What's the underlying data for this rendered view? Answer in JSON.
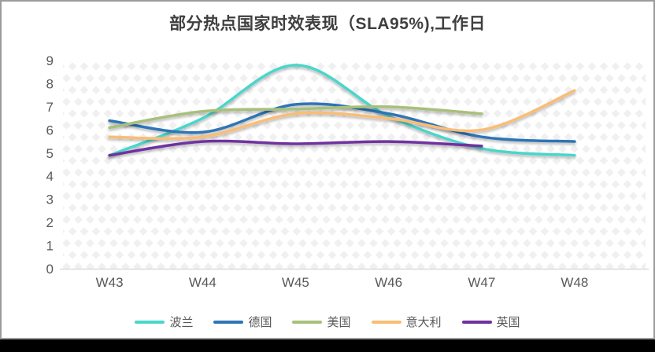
{
  "chart_data": {
    "type": "line",
    "title": "部分热点国家时效表现（SLA95%),工作日",
    "categories": [
      "W43",
      "W44",
      "W45",
      "W46",
      "W47",
      "W48"
    ],
    "series": [
      {
        "key": "poland",
        "name": "波兰",
        "color": "#4AD6CB",
        "values": [
          4.9,
          6.5,
          8.8,
          6.6,
          5.2,
          4.9
        ]
      },
      {
        "key": "germany",
        "name": "德国",
        "color": "#2E75B6",
        "values": [
          6.4,
          5.9,
          7.1,
          6.7,
          5.7,
          5.5
        ]
      },
      {
        "key": "usa",
        "name": "美国",
        "color": "#A8C07A",
        "values": [
          6.1,
          6.8,
          6.9,
          7.0,
          6.7,
          null
        ]
      },
      {
        "key": "italy",
        "name": "意大利",
        "color": "#FABD74",
        "values": [
          5.7,
          5.7,
          6.7,
          6.5,
          6.0,
          7.7
        ]
      },
      {
        "key": "uk",
        "name": "英国",
        "color": "#7030A0",
        "values": [
          4.9,
          5.5,
          5.4,
          5.5,
          5.3,
          null
        ]
      }
    ],
    "ylim": [
      0,
      9
    ],
    "y_ticks": [
      0,
      1,
      2,
      3,
      4,
      5,
      6,
      7,
      8,
      9
    ],
    "xlabel": "",
    "ylabel": "",
    "grid": "none",
    "legend_position": "bottom",
    "line_smoothing": true
  },
  "style": {
    "title_color": "#3f3f3f",
    "axis_label_color": "#595959",
    "axis_line_color": "#d9d9d9",
    "plot_pattern_color": "#f0f0f0",
    "frame_border_color": "#9c9c9c",
    "bottom_bar_color": "#000000"
  }
}
